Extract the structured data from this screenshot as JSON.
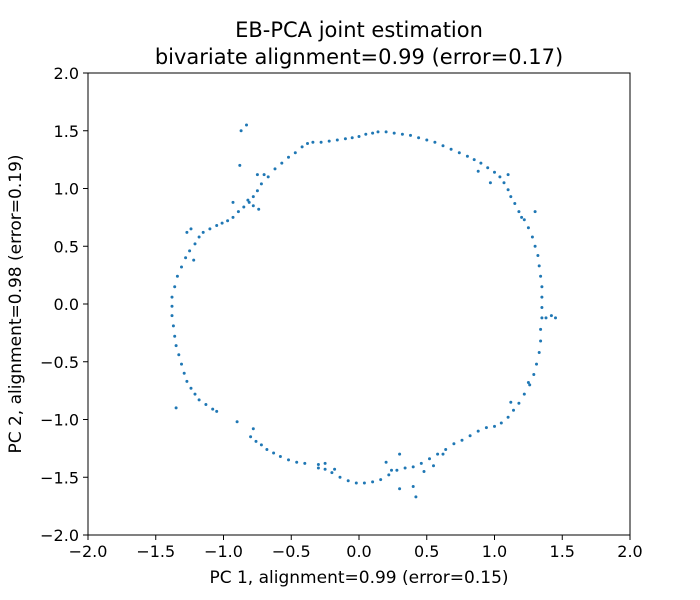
{
  "chart_data": {
    "type": "scatter",
    "title_line1": "EB-PCA joint estimation",
    "title_line2": "bivariate alignment=0.99 (error=0.17)",
    "xlabel": "PC 1, alignment=0.99 (error=0.15)",
    "ylabel": "PC 2, alignment=0.98 (error=0.19)",
    "xlim": [
      -2.0,
      2.0
    ],
    "ylim": [
      -2.0,
      2.0
    ],
    "xticks": [
      "−2.0",
      "−1.5",
      "−1.0",
      "−0.5",
      "0.0",
      "0.5",
      "1.0",
      "1.5",
      "2.0"
    ],
    "yticks": [
      "−2.0",
      "−1.5",
      "−1.0",
      "−0.5",
      "0.0",
      "0.5",
      "1.0",
      "1.5",
      "2.0"
    ],
    "xtick_values": [
      -2.0,
      -1.5,
      -1.0,
      -0.5,
      0.0,
      0.5,
      1.0,
      1.5,
      2.0
    ],
    "ytick_values": [
      -2.0,
      -1.5,
      -1.0,
      -0.5,
      0.0,
      0.5,
      1.0,
      1.5,
      2.0
    ],
    "grid": false,
    "marker_color": "#1f77b4",
    "points": [
      [
        0.14,
        1.49
      ],
      [
        0.1,
        1.48
      ],
      [
        0.05,
        1.47
      ],
      [
        0.0,
        1.45
      ],
      [
        -0.05,
        1.44
      ],
      [
        -0.1,
        1.43
      ],
      [
        -0.16,
        1.42
      ],
      [
        -0.22,
        1.41
      ],
      [
        -0.28,
        1.4
      ],
      [
        -0.34,
        1.4
      ],
      [
        -0.38,
        1.39
      ],
      [
        -0.42,
        1.36
      ],
      [
        -0.47,
        1.31
      ],
      [
        -0.52,
        1.27
      ],
      [
        -0.57,
        1.22
      ],
      [
        -0.62,
        1.17
      ],
      [
        -0.67,
        1.1
      ],
      [
        -0.72,
        1.04
      ],
      [
        -0.75,
        0.98
      ],
      [
        -0.78,
        0.93
      ],
      [
        -0.81,
        0.88
      ],
      [
        -0.85,
        0.84
      ],
      [
        -0.89,
        0.8
      ],
      [
        -0.93,
        0.75
      ],
      [
        -0.97,
        0.72
      ],
      [
        -1.01,
        0.7
      ],
      [
        -1.05,
        0.68
      ],
      [
        -1.1,
        0.65
      ],
      [
        -1.15,
        0.62
      ],
      [
        -1.18,
        0.58
      ],
      [
        -1.21,
        0.52
      ],
      [
        -1.25,
        0.46
      ],
      [
        -1.28,
        0.4
      ],
      [
        -1.31,
        0.32
      ],
      [
        -1.34,
        0.24
      ],
      [
        -1.36,
        0.15
      ],
      [
        -1.38,
        0.06
      ],
      [
        -1.38,
        -0.02
      ],
      [
        -1.38,
        -0.1
      ],
      [
        -1.37,
        -0.19
      ],
      [
        -1.36,
        -0.28
      ],
      [
        -1.35,
        -0.36
      ],
      [
        -1.33,
        -0.44
      ],
      [
        -1.31,
        -0.52
      ],
      [
        -1.29,
        -0.6
      ],
      [
        -1.27,
        -0.67
      ],
      [
        -1.24,
        -0.73
      ],
      [
        -1.21,
        -0.78
      ],
      [
        -1.18,
        -0.83
      ],
      [
        -1.13,
        -0.87
      ],
      [
        -1.08,
        -0.91
      ],
      [
        -0.8,
        -1.15
      ],
      [
        -0.76,
        -1.19
      ],
      [
        -0.72,
        -1.22
      ],
      [
        -0.68,
        -1.26
      ],
      [
        -0.63,
        -1.29
      ],
      [
        -0.58,
        -1.32
      ],
      [
        -0.52,
        -1.35
      ],
      [
        -0.46,
        -1.37
      ],
      [
        -0.4,
        -1.38
      ],
      [
        -0.3,
        -1.39
      ],
      [
        -0.25,
        -1.43
      ],
      [
        -0.2,
        -1.46
      ],
      [
        -0.14,
        -1.5
      ],
      [
        -0.08,
        -1.53
      ],
      [
        -0.02,
        -1.55
      ],
      [
        0.04,
        -1.55
      ],
      [
        0.1,
        -1.54
      ],
      [
        0.16,
        -1.52
      ],
      [
        0.22,
        -1.48
      ],
      [
        0.28,
        -1.44
      ],
      [
        0.34,
        -1.42
      ],
      [
        0.4,
        -1.41
      ],
      [
        0.46,
        -1.38
      ],
      [
        0.52,
        -1.34
      ],
      [
        0.58,
        -1.3
      ],
      [
        0.64,
        -1.26
      ],
      [
        0.7,
        -1.21
      ],
      [
        0.76,
        -1.18
      ],
      [
        0.82,
        -1.14
      ],
      [
        0.88,
        -1.1
      ],
      [
        0.94,
        -1.07
      ],
      [
        1.0,
        -1.06
      ],
      [
        1.05,
        -1.03
      ],
      [
        1.1,
        -0.98
      ],
      [
        1.14,
        -0.92
      ],
      [
        1.18,
        -0.86
      ],
      [
        1.22,
        -0.78
      ],
      [
        1.26,
        -0.7
      ],
      [
        1.29,
        -0.61
      ],
      [
        1.31,
        -0.52
      ],
      [
        1.33,
        -0.42
      ],
      [
        1.34,
        -0.32
      ],
      [
        1.34,
        -0.22
      ],
      [
        1.35,
        -0.12
      ],
      [
        1.35,
        -0.03
      ],
      [
        1.35,
        0.06
      ],
      [
        1.35,
        0.15
      ],
      [
        1.34,
        0.24
      ],
      [
        1.33,
        0.33
      ],
      [
        1.32,
        0.42
      ],
      [
        1.3,
        0.5
      ],
      [
        1.28,
        0.58
      ],
      [
        1.25,
        0.66
      ],
      [
        1.22,
        0.73
      ],
      [
        1.18,
        0.8
      ],
      [
        1.15,
        0.87
      ],
      [
        1.12,
        0.93
      ],
      [
        1.1,
        0.99
      ],
      [
        1.07,
        1.05
      ],
      [
        1.04,
        1.1
      ],
      [
        1.0,
        1.14
      ],
      [
        0.95,
        1.18
      ],
      [
        0.9,
        1.22
      ],
      [
        0.85,
        1.25
      ],
      [
        0.8,
        1.28
      ],
      [
        0.74,
        1.31
      ],
      [
        0.68,
        1.34
      ],
      [
        0.62,
        1.37
      ],
      [
        0.56,
        1.4
      ],
      [
        0.5,
        1.42
      ],
      [
        0.44,
        1.44
      ],
      [
        0.38,
        1.46
      ],
      [
        0.32,
        1.47
      ],
      [
        0.26,
        1.48
      ],
      [
        0.2,
        1.49
      ],
      [
        -0.83,
        1.55
      ],
      [
        -0.87,
        1.5
      ],
      [
        -0.88,
        1.2
      ],
      [
        -0.75,
        1.12
      ],
      [
        -0.7,
        1.12
      ],
      [
        -0.82,
        0.9
      ],
      [
        -0.78,
        0.85
      ],
      [
        -0.74,
        0.82
      ],
      [
        -0.93,
        0.88
      ],
      [
        -1.22,
        0.38
      ],
      [
        -1.27,
        0.62
      ],
      [
        -1.24,
        0.65
      ],
      [
        -1.35,
        -0.9
      ],
      [
        -1.05,
        -0.93
      ],
      [
        -0.78,
        -1.08
      ],
      [
        -0.9,
        -1.02
      ],
      [
        -0.3,
        -1.42
      ],
      [
        -0.25,
        -1.38
      ],
      [
        -0.18,
        -1.43
      ],
      [
        0.24,
        -1.44
      ],
      [
        0.3,
        -1.6
      ],
      [
        0.4,
        -1.58
      ],
      [
        0.42,
        -1.67
      ],
      [
        0.55,
        -1.4
      ],
      [
        0.48,
        -1.45
      ],
      [
        0.62,
        -1.3
      ],
      [
        1.12,
        -0.85
      ],
      [
        1.25,
        -0.68
      ],
      [
        1.38,
        -0.12
      ],
      [
        1.42,
        -0.1
      ],
      [
        1.45,
        -0.12
      ],
      [
        1.3,
        0.8
      ],
      [
        1.2,
        0.75
      ],
      [
        1.1,
        1.12
      ],
      [
        0.97,
        1.05
      ],
      [
        0.88,
        1.15
      ],
      [
        0.3,
        -1.3
      ],
      [
        0.2,
        -1.37
      ]
    ]
  }
}
